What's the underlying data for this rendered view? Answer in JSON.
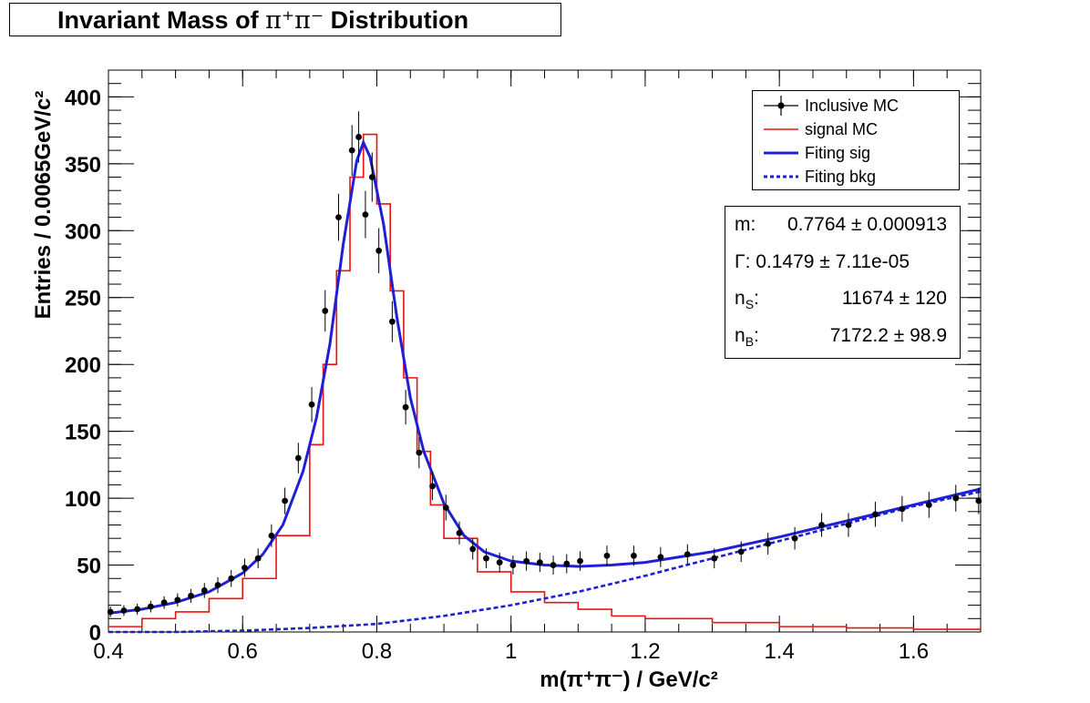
{
  "chart_data": {
    "type": "line",
    "title": "Invariant Mass of π⁺π⁻ Distribution",
    "title_parts": {
      "pre": "Invariant Mass of",
      "particle": "π⁺π⁻",
      "post": "Distribution"
    },
    "xlabel": "m(π⁺π⁻) / GeV/c²",
    "ylabel": "Entries / 0.0065GeV/c²",
    "xlim": [
      0.4,
      1.7
    ],
    "ylim": [
      0,
      420
    ],
    "x_ticks": [
      0.4,
      0.6,
      0.8,
      1.0,
      1.2,
      1.4,
      1.6
    ],
    "x_tick_labels": [
      "0.4",
      "0.6",
      "0.8",
      "1",
      "1.2",
      "1.4",
      "1.6"
    ],
    "y_ticks": [
      0,
      50,
      100,
      150,
      200,
      250,
      300,
      350,
      400
    ],
    "y_tick_labels": [
      "0",
      "50",
      "100",
      "150",
      "200",
      "250",
      "300",
      "350",
      "400"
    ],
    "grid": false,
    "legend_position": "top-right",
    "series": [
      {
        "name": "Inclusive MC",
        "kind": "points-with-errors",
        "color": "#000000",
        "x": [
          0.403,
          0.423,
          0.443,
          0.463,
          0.483,
          0.503,
          0.523,
          0.543,
          0.563,
          0.583,
          0.603,
          0.623,
          0.643,
          0.663,
          0.683,
          0.703,
          0.723,
          0.743,
          0.763,
          0.773,
          0.783,
          0.793,
          0.803,
          0.823,
          0.843,
          0.863,
          0.883,
          0.903,
          0.923,
          0.943,
          0.963,
          0.983,
          1.003,
          1.023,
          1.043,
          1.063,
          1.083,
          1.103,
          1.143,
          1.183,
          1.223,
          1.263,
          1.303,
          1.343,
          1.383,
          1.423,
          1.463,
          1.503,
          1.543,
          1.583,
          1.623,
          1.663,
          1.697
        ],
        "y": [
          15,
          16,
          17,
          19,
          22,
          24,
          27,
          31,
          35,
          40,
          48,
          55,
          72,
          98,
          130,
          170,
          240,
          310,
          360,
          370,
          312,
          340,
          285,
          232,
          168,
          134,
          109,
          93,
          74,
          62,
          55,
          52,
          50,
          53,
          52,
          50,
          51,
          53,
          57,
          57,
          56,
          58,
          55,
          60,
          66,
          70,
          80,
          80,
          88,
          92,
          95,
          100,
          98
        ]
      },
      {
        "name": "signal MC",
        "kind": "histogram",
        "color": "#ee1111",
        "x": [
          0.4,
          0.45,
          0.5,
          0.55,
          0.6,
          0.65,
          0.7,
          0.72,
          0.74,
          0.76,
          0.78,
          0.8,
          0.82,
          0.84,
          0.86,
          0.88,
          0.9,
          0.95,
          1.0,
          1.05,
          1.1,
          1.15,
          1.2,
          1.3,
          1.4,
          1.5,
          1.6,
          1.7
        ],
        "y": [
          4,
          10,
          15,
          25,
          40,
          72,
          140,
          200,
          270,
          340,
          372,
          320,
          255,
          190,
          135,
          95,
          70,
          45,
          30,
          22,
          17,
          12,
          10,
          7,
          4,
          3,
          2,
          2
        ]
      },
      {
        "name": "Fiting sig",
        "kind": "line",
        "color": "#1f1fd6",
        "x": [
          0.4,
          0.45,
          0.5,
          0.55,
          0.6,
          0.63,
          0.66,
          0.69,
          0.71,
          0.73,
          0.75,
          0.77,
          0.78,
          0.79,
          0.81,
          0.83,
          0.85,
          0.87,
          0.9,
          0.93,
          0.96,
          1.0,
          1.05,
          1.1,
          1.15,
          1.2,
          1.3,
          1.4,
          1.5,
          1.6,
          1.7
        ],
        "y": [
          14,
          17,
          22,
          30,
          44,
          58,
          80,
          120,
          160,
          215,
          290,
          352,
          366,
          355,
          305,
          235,
          175,
          135,
          96,
          72,
          60,
          53,
          50,
          49,
          50,
          52,
          60,
          71,
          83,
          95,
          107
        ]
      },
      {
        "name": "Fiting bkg",
        "kind": "dashed-line",
        "color": "#1f1fd6",
        "x": [
          0.4,
          0.5,
          0.6,
          0.7,
          0.8,
          0.9,
          1.0,
          1.1,
          1.2,
          1.3,
          1.4,
          1.5,
          1.6,
          1.7
        ],
        "y": [
          0,
          0,
          1,
          3,
          6,
          12,
          20,
          30,
          42,
          55,
          68,
          81,
          94,
          105
        ]
      }
    ],
    "fit_results": [
      {
        "name": "m:",
        "value": "0.7764 ± 0.000913"
      },
      {
        "name": "Γ: 0.1479 ± 7.11e-05",
        "value": ""
      },
      {
        "name": "n",
        "sub": "S",
        "suffix": ":",
        "value": "11674 ± 120"
      },
      {
        "name": "n",
        "sub": "B",
        "suffix": ":",
        "value": "7172.2 ± 98.9"
      }
    ]
  }
}
